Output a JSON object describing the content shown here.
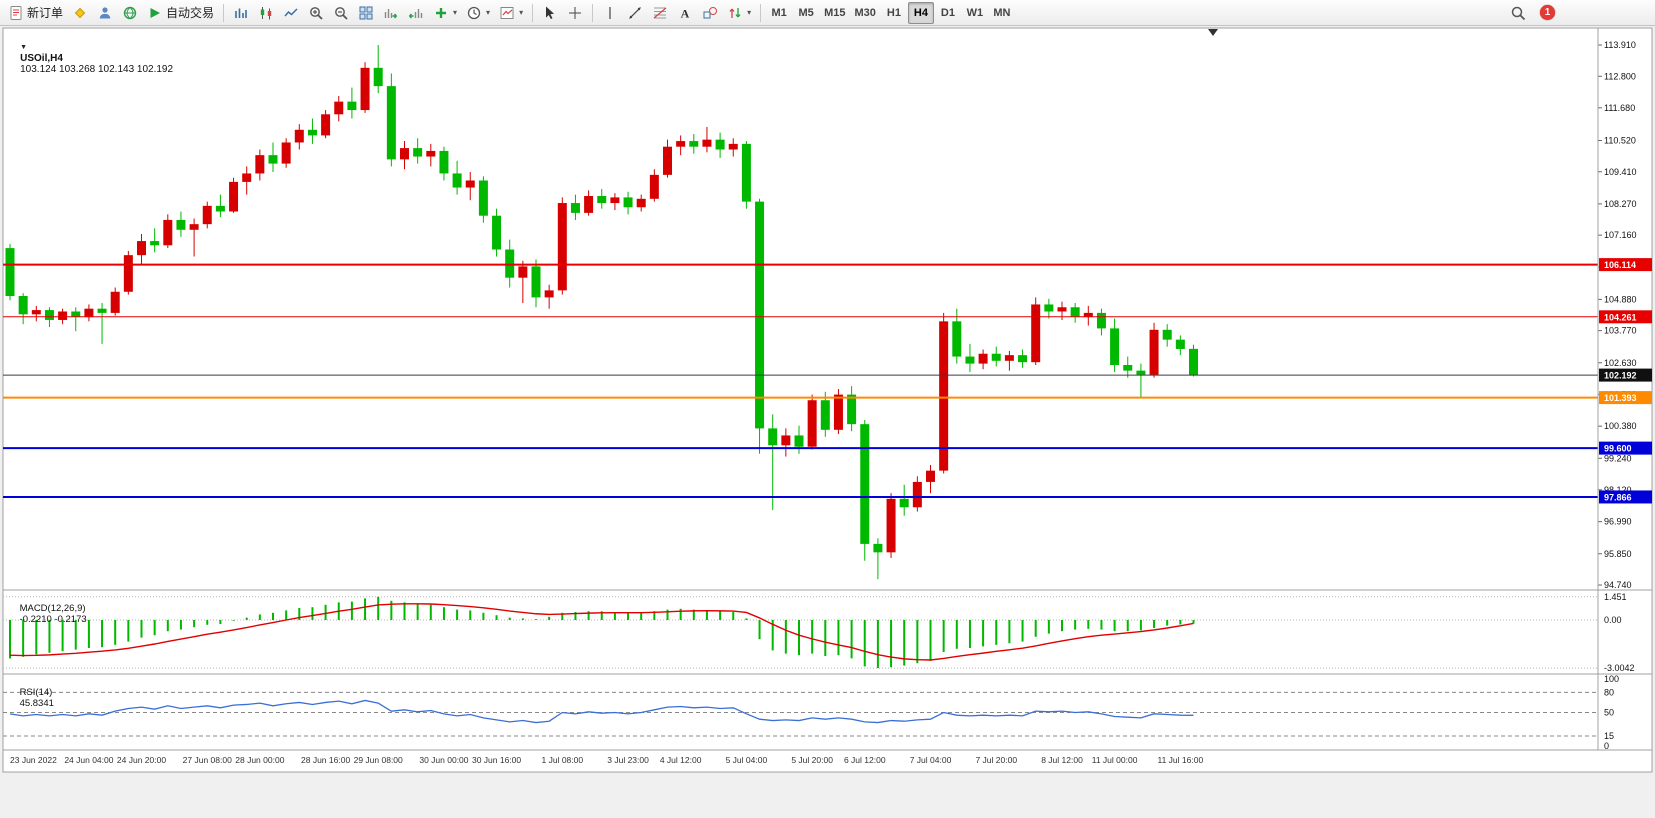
{
  "toolbar": {
    "groups": [
      {
        "items": [
          {
            "name": "new-order-button",
            "icon": "form",
            "label": "新订单"
          },
          {
            "name": "data-window-button",
            "icon": "diamond"
          },
          {
            "name": "accounts-button",
            "icon": "person"
          },
          {
            "name": "community-button",
            "icon": "globe"
          },
          {
            "name": "auto-trading-button",
            "icon": "play",
            "label": "自动交易"
          }
        ]
      },
      {
        "items": [
          {
            "name": "bar-chart-button",
            "icon": "bars"
          },
          {
            "name": "candlestick-chart-button",
            "icon": "candle"
          },
          {
            "name": "line-chart-button",
            "icon": "linechart"
          },
          {
            "name": "zoom-in-button",
            "icon": "zoomin"
          },
          {
            "name": "zoom-out-button",
            "icon": "zoomout"
          },
          {
            "name": "tile-windows-button",
            "icon": "tile"
          },
          {
            "name": "auto-scroll-button",
            "icon": "autoscroll"
          },
          {
            "name": "chart-shift-button",
            "icon": "shiftchart"
          },
          {
            "name": "indicators-button",
            "icon": "addind",
            "caret": true
          },
          {
            "name": "periods-button",
            "icon": "clock",
            "caret": true
          },
          {
            "name": "templates-button",
            "icon": "template",
            "caret": true
          }
        ]
      },
      {
        "items": [
          {
            "name": "cursor-button",
            "icon": "cursor"
          },
          {
            "name": "crosshair-button",
            "icon": "cross"
          }
        ]
      },
      {
        "items": [
          {
            "name": "vertical-line-button",
            "icon": "vline"
          },
          {
            "name": "trendline-button",
            "icon": "trend"
          },
          {
            "name": "fibonacci-button",
            "icon": "fib"
          },
          {
            "name": "text-button",
            "icon": "textA"
          },
          {
            "name": "shapes-button",
            "icon": "shapes"
          },
          {
            "name": "arrows-button",
            "icon": "arrows",
            "caret": true
          }
        ]
      }
    ],
    "timeframes": {
      "options": [
        "M1",
        "M5",
        "M15",
        "M30",
        "H1",
        "H4",
        "D1",
        "W1",
        "MN"
      ],
      "active": "H4"
    },
    "notification_count": "1"
  },
  "chart": {
    "symbol": "USOil,H4",
    "ohlc": "103.124 103.268 102.143 102.192",
    "colors": {
      "up": "#d60000",
      "down": "#00b800"
    },
    "price_axis": [
      113.91,
      112.8,
      111.68,
      110.52,
      109.41,
      108.27,
      107.16,
      106.03,
      104.88,
      103.77,
      102.63,
      101.5,
      100.38,
      99.24,
      98.12,
      96.99,
      95.85,
      94.74
    ],
    "hlines": [
      {
        "price": 106.114,
        "label": "106.114",
        "color": "#e60000",
        "tag": "#e60000",
        "width": 2
      },
      {
        "price": 104.261,
        "label": "104.261",
        "color": "#e60000",
        "tag": "#e60000",
        "width": 1
      },
      {
        "price": 102.192,
        "label": "102.192",
        "color": "#3c3c3c",
        "tag": "#101010",
        "width": 1
      },
      {
        "price": 101.393,
        "label": "101.393",
        "color": "#ff8a00",
        "tag": "#ff8a00",
        "width": 2
      },
      {
        "price": 99.6,
        "label": "99.600",
        "color": "#0000d8",
        "tag": "#0000d8",
        "width": 2
      },
      {
        "price": 97.866,
        "label": "97.866",
        "color": "#0000d8",
        "tag": "#0000d8",
        "width": 2
      }
    ],
    "candles": [
      [
        106.7,
        106.85,
        104.85,
        105.0
      ],
      [
        105.0,
        105.1,
        104.0,
        104.35
      ],
      [
        104.35,
        104.65,
        104.1,
        104.5
      ],
      [
        104.5,
        104.6,
        103.9,
        104.15
      ],
      [
        104.15,
        104.55,
        104.0,
        104.45
      ],
      [
        104.45,
        104.6,
        103.75,
        104.25
      ],
      [
        104.25,
        104.7,
        104.1,
        104.55
      ],
      [
        104.55,
        104.75,
        103.3,
        104.4
      ],
      [
        104.4,
        105.3,
        104.3,
        105.15
      ],
      [
        105.15,
        106.6,
        105.05,
        106.45
      ],
      [
        106.45,
        107.2,
        106.1,
        106.95
      ],
      [
        106.95,
        107.4,
        106.55,
        106.8
      ],
      [
        106.8,
        107.9,
        106.7,
        107.7
      ],
      [
        107.7,
        108.0,
        107.1,
        107.35
      ],
      [
        107.35,
        107.75,
        106.4,
        107.55
      ],
      [
        107.55,
        108.35,
        107.4,
        108.2
      ],
      [
        108.2,
        108.6,
        107.8,
        108.0
      ],
      [
        108.0,
        109.2,
        107.95,
        109.05
      ],
      [
        109.05,
        109.6,
        108.6,
        109.35
      ],
      [
        109.35,
        110.2,
        109.1,
        110.0
      ],
      [
        110.0,
        110.45,
        109.4,
        109.7
      ],
      [
        109.7,
        110.6,
        109.55,
        110.45
      ],
      [
        110.45,
        111.1,
        110.2,
        110.9
      ],
      [
        110.9,
        111.3,
        110.4,
        110.7
      ],
      [
        110.7,
        111.6,
        110.6,
        111.45
      ],
      [
        111.45,
        112.1,
        111.2,
        111.9
      ],
      [
        111.9,
        112.4,
        111.3,
        111.6
      ],
      [
        111.6,
        113.3,
        111.5,
        113.1
      ],
      [
        113.1,
        113.91,
        112.2,
        112.45
      ],
      [
        112.45,
        112.9,
        109.6,
        109.85
      ],
      [
        109.85,
        110.5,
        109.5,
        110.25
      ],
      [
        110.25,
        110.6,
        109.7,
        109.95
      ],
      [
        109.95,
        110.4,
        109.6,
        110.15
      ],
      [
        110.15,
        110.3,
        109.1,
        109.35
      ],
      [
        109.35,
        109.8,
        108.6,
        108.85
      ],
      [
        108.85,
        109.4,
        108.4,
        109.1
      ],
      [
        109.1,
        109.25,
        107.6,
        107.85
      ],
      [
        107.85,
        108.1,
        106.4,
        106.65
      ],
      [
        106.65,
        107.0,
        105.3,
        105.65
      ],
      [
        105.65,
        106.25,
        104.75,
        106.05
      ],
      [
        106.05,
        106.3,
        104.6,
        104.95
      ],
      [
        104.95,
        105.4,
        104.55,
        105.2
      ],
      [
        105.2,
        108.5,
        105.05,
        108.3
      ],
      [
        108.3,
        108.6,
        107.7,
        107.95
      ],
      [
        107.95,
        108.75,
        107.85,
        108.55
      ],
      [
        108.55,
        108.8,
        108.1,
        108.3
      ],
      [
        108.3,
        108.65,
        108.05,
        108.5
      ],
      [
        108.5,
        108.7,
        107.9,
        108.15
      ],
      [
        108.15,
        108.6,
        108.0,
        108.45
      ],
      [
        108.45,
        109.5,
        108.35,
        109.3
      ],
      [
        109.3,
        110.55,
        109.2,
        110.3
      ],
      [
        110.3,
        110.7,
        110.0,
        110.5
      ],
      [
        110.5,
        110.75,
        110.05,
        110.3
      ],
      [
        110.3,
        111.0,
        110.1,
        110.55
      ],
      [
        110.55,
        110.8,
        109.9,
        110.2
      ],
      [
        110.2,
        110.6,
        109.95,
        110.4
      ],
      [
        110.4,
        110.5,
        108.1,
        108.35
      ],
      [
        108.35,
        108.45,
        99.4,
        100.3
      ],
      [
        100.3,
        100.8,
        97.4,
        99.7
      ],
      [
        99.7,
        100.3,
        99.3,
        100.05
      ],
      [
        100.05,
        100.4,
        99.4,
        99.65
      ],
      [
        99.65,
        101.5,
        99.55,
        101.3
      ],
      [
        101.3,
        101.6,
        100.0,
        100.25
      ],
      [
        100.25,
        101.7,
        100.1,
        101.5
      ],
      [
        101.5,
        101.8,
        100.2,
        100.45
      ],
      [
        100.45,
        100.6,
        95.6,
        96.2
      ],
      [
        96.2,
        96.4,
        94.95,
        95.9
      ],
      [
        95.9,
        98.0,
        95.7,
        97.8
      ],
      [
        97.8,
        98.3,
        97.2,
        97.5
      ],
      [
        97.5,
        98.6,
        97.35,
        98.4
      ],
      [
        98.4,
        99.0,
        98.0,
        98.8
      ],
      [
        98.8,
        104.4,
        98.7,
        104.1
      ],
      [
        104.1,
        104.55,
        102.6,
        102.85
      ],
      [
        102.85,
        103.3,
        102.3,
        102.6
      ],
      [
        102.6,
        103.1,
        102.4,
        102.95
      ],
      [
        102.95,
        103.2,
        102.5,
        102.7
      ],
      [
        102.7,
        103.05,
        102.35,
        102.9
      ],
      [
        102.9,
        103.1,
        102.45,
        102.65
      ],
      [
        102.65,
        104.95,
        102.55,
        104.7
      ],
      [
        104.7,
        104.9,
        104.2,
        104.45
      ],
      [
        104.45,
        104.8,
        104.15,
        104.6
      ],
      [
        104.6,
        104.75,
        104.05,
        104.25
      ],
      [
        104.25,
        104.65,
        103.95,
        104.4
      ],
      [
        104.4,
        104.55,
        103.6,
        103.85
      ],
      [
        103.85,
        104.2,
        102.3,
        102.55
      ],
      [
        102.55,
        102.85,
        102.1,
        102.35
      ],
      [
        102.35,
        102.6,
        101.4,
        102.2
      ],
      [
        102.2,
        104.05,
        102.1,
        103.8
      ],
      [
        103.8,
        104.0,
        103.2,
        103.45
      ],
      [
        103.45,
        103.6,
        102.9,
        103.12
      ],
      [
        103.124,
        103.268,
        102.143,
        102.192
      ]
    ],
    "time_labels": [
      {
        "text": "23 Jun 2022",
        "i": 0
      },
      {
        "text": "24 Jun 04:00",
        "i": 6
      },
      {
        "text": "24 Jun 20:00",
        "i": 10
      },
      {
        "text": "27 Jun 08:00",
        "i": 15
      },
      {
        "text": "28 Jun 00:00",
        "i": 19
      },
      {
        "text": "28 Jun 16:00",
        "i": 24
      },
      {
        "text": "29 Jun 08:00",
        "i": 28
      },
      {
        "text": "30 Jun 00:00",
        "i": 33
      },
      {
        "text": "30 Jun 16:00",
        "i": 37
      },
      {
        "text": "1 Jul 08:00",
        "i": 42
      },
      {
        "text": "3 Jul 23:00",
        "i": 47
      },
      {
        "text": "4 Jul 12:00",
        "i": 51
      },
      {
        "text": "5 Jul 04:00",
        "i": 56
      },
      {
        "text": "5 Jul 20:00",
        "i": 61
      },
      {
        "text": "6 Jul 12:00",
        "i": 65
      },
      {
        "text": "7 Jul 04:00",
        "i": 70
      },
      {
        "text": "7 Jul 20:00",
        "i": 75
      },
      {
        "text": "8 Jul 12:00",
        "i": 80
      },
      {
        "text": "11 Jul 00:00",
        "i": 84
      },
      {
        "text": "11 Jul 16:00",
        "i": 89
      }
    ]
  },
  "macd": {
    "title": "MACD(12,26,9)",
    "values_text": "-0.2210 -0.2173",
    "colors": {
      "histogram": "#00b800",
      "signal": "#e00000"
    },
    "axis": [
      {
        "text": "1.451",
        "value": 1.451
      },
      {
        "text": "0.00",
        "value": 0
      },
      {
        "text": "-3.0042",
        "value": -3.0042
      }
    ],
    "histogram": [
      -2.4,
      -2.3,
      -2.15,
      -2.05,
      -1.95,
      -1.85,
      -1.75,
      -1.7,
      -1.55,
      -1.35,
      -1.1,
      -0.95,
      -0.7,
      -0.6,
      -0.45,
      -0.3,
      -0.25,
      -0.05,
      0.15,
      0.35,
      0.45,
      0.6,
      0.75,
      0.8,
      0.95,
      1.1,
      1.15,
      1.35,
      1.45,
      1.2,
      1.1,
      1.0,
      0.95,
      0.8,
      0.65,
      0.6,
      0.45,
      0.3,
      0.15,
      0.1,
      0.05,
      0.2,
      0.45,
      0.5,
      0.55,
      0.55,
      0.5,
      0.45,
      0.45,
      0.55,
      0.65,
      0.7,
      0.65,
      0.6,
      0.55,
      0.5,
      0.1,
      -1.2,
      -1.9,
      -2.1,
      -2.2,
      -2.1,
      -2.25,
      -2.2,
      -2.4,
      -2.9,
      -3.0,
      -2.95,
      -2.85,
      -2.7,
      -2.55,
      -2.0,
      -1.8,
      -1.75,
      -1.65,
      -1.55,
      -1.45,
      -1.35,
      -1.05,
      -0.85,
      -0.7,
      -0.6,
      -0.55,
      -0.6,
      -0.7,
      -0.7,
      -0.65,
      -0.5,
      -0.35,
      -0.28,
      -0.221
    ],
    "signal": [
      -2.2,
      -2.22,
      -2.21,
      -2.18,
      -2.13,
      -2.08,
      -2.01,
      -1.95,
      -1.87,
      -1.77,
      -1.64,
      -1.5,
      -1.34,
      -1.19,
      -1.04,
      -0.89,
      -0.76,
      -0.62,
      -0.47,
      -0.31,
      -0.16,
      0.0,
      0.15,
      0.28,
      0.41,
      0.55,
      0.67,
      0.81,
      0.94,
      0.99,
      1.01,
      1.01,
      1.0,
      0.96,
      0.9,
      0.84,
      0.76,
      0.67,
      0.56,
      0.47,
      0.39,
      0.35,
      0.37,
      0.4,
      0.43,
      0.45,
      0.46,
      0.46,
      0.46,
      0.48,
      0.51,
      0.55,
      0.57,
      0.58,
      0.57,
      0.56,
      0.47,
      0.13,
      -0.27,
      -0.64,
      -0.95,
      -1.18,
      -1.39,
      -1.56,
      -1.72,
      -1.96,
      -2.17,
      -2.32,
      -2.43,
      -2.48,
      -2.5,
      -2.4,
      -2.28,
      -2.17,
      -2.07,
      -1.96,
      -1.86,
      -1.76,
      -1.62,
      -1.46,
      -1.31,
      -1.17,
      -1.04,
      -0.95,
      -0.88,
      -0.8,
      -0.72,
      -0.62,
      -0.5,
      -0.36,
      -0.2173
    ]
  },
  "rsi": {
    "title": "RSI(14)",
    "value_text": "45.8341",
    "color": "#3a6fd8",
    "levels": [
      80,
      50,
      15
    ],
    "axis": [
      100,
      80,
      50,
      15,
      0
    ],
    "values": [
      48,
      45,
      47,
      45,
      47,
      45,
      48,
      46,
      52,
      56,
      58,
      55,
      60,
      56,
      58,
      60,
      57,
      61,
      62,
      64,
      60,
      63,
      65,
      62,
      65,
      67,
      63,
      68,
      64,
      52,
      54,
      51,
      53,
      48,
      45,
      47,
      42,
      39,
      36,
      38,
      35,
      37,
      50,
      48,
      51,
      49,
      50,
      48,
      50,
      54,
      58,
      59,
      57,
      58,
      56,
      57,
      48,
      40,
      38,
      39,
      38,
      42,
      40,
      42,
      40,
      36,
      35,
      38,
      37,
      39,
      40,
      50,
      46,
      45,
      46,
      45,
      46,
      45,
      52,
      51,
      52,
      50,
      51,
      48,
      44,
      43,
      42,
      48,
      47,
      46,
      45.83
    ]
  }
}
